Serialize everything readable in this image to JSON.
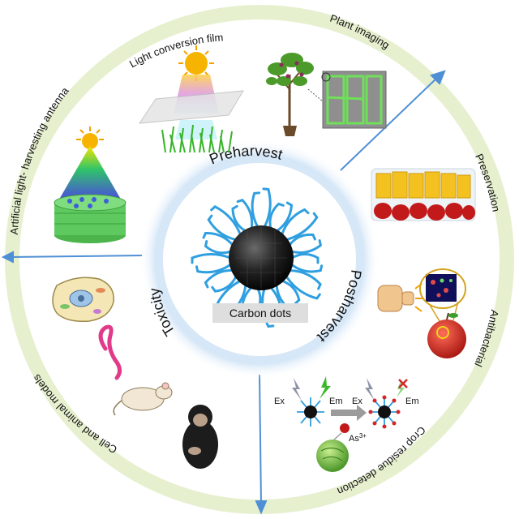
{
  "center": {
    "label": "Carbon dots"
  },
  "inner_sections": {
    "preharvest": "Preharvest",
    "postharvest": "Postharvest",
    "toxicity": "Toxicity"
  },
  "outer_labels": {
    "light_conversion_film": "Light conversion film",
    "plant_imaging": "Plant imaging",
    "preservation": "Preservation",
    "antibacterial": "Antibacterial",
    "crop_residue_detection": "Crop residue detection",
    "cell_and_animal_models": "Cell and animal models",
    "artificial_light_harvesting_antenna": "Artificial light- harvesting antenna"
  },
  "detection_scheme": {
    "ex_left": "Ex",
    "em_left": "Em",
    "ex_right": "Ex",
    "em_right": "Em",
    "ion": "As",
    "ion_charge": "3+"
  },
  "colors": {
    "outer_ring": "#e3efc9",
    "inner_glow": "#bcd8f1",
    "arrow": "#4f8fd6",
    "ligand": "#2f9fe0",
    "core": "#1a1a1a"
  }
}
